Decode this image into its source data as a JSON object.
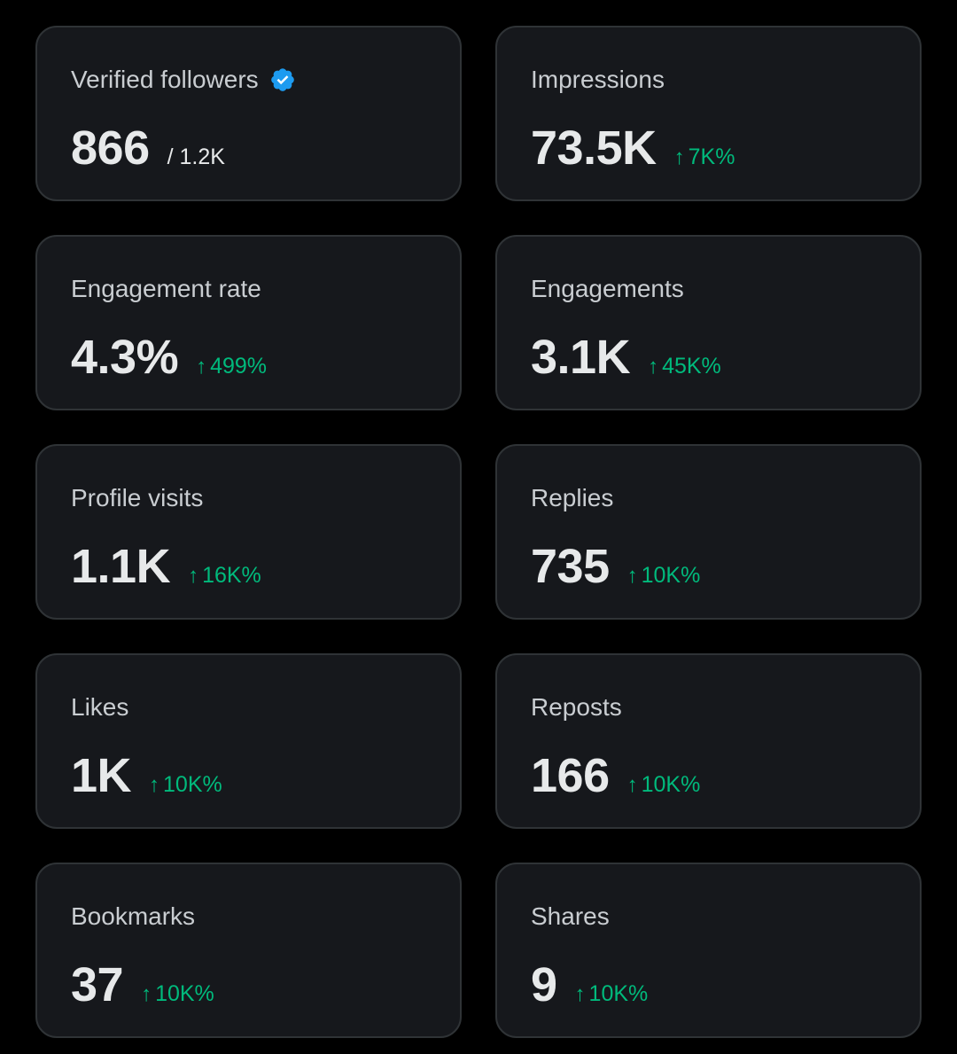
{
  "colors": {
    "background": "#000000",
    "card": "#16181c",
    "card_border": "#2f3336",
    "label": "#c9cdd1",
    "value": "#e7e9ea",
    "positive": "#00ba7c",
    "verified": "#1d9bf0"
  },
  "icons": {
    "verified": "verified-badge-icon",
    "trend": "arrow-up-icon"
  },
  "metrics": [
    {
      "label": "Verified followers",
      "value": "866",
      "sub": "/ 1.2K",
      "verified": true
    },
    {
      "label": "Impressions",
      "value": "73.5K",
      "arrow": "↑",
      "change": "7K%"
    },
    {
      "label": "Engagement rate",
      "value": "4.3%",
      "arrow": "↑",
      "change": "499%"
    },
    {
      "label": "Engagements",
      "value": "3.1K",
      "arrow": "↑",
      "change": "45K%"
    },
    {
      "label": "Profile visits",
      "value": "1.1K",
      "arrow": "↑",
      "change": "16K%"
    },
    {
      "label": "Replies",
      "value": "735",
      "arrow": "↑",
      "change": "10K%"
    },
    {
      "label": "Likes",
      "value": "1K",
      "arrow": "↑",
      "change": "10K%"
    },
    {
      "label": "Reposts",
      "value": "166",
      "arrow": "↑",
      "change": "10K%"
    },
    {
      "label": "Bookmarks",
      "value": "37",
      "arrow": "↑",
      "change": "10K%"
    },
    {
      "label": "Shares",
      "value": "9",
      "arrow": "↑",
      "change": "10K%"
    }
  ]
}
